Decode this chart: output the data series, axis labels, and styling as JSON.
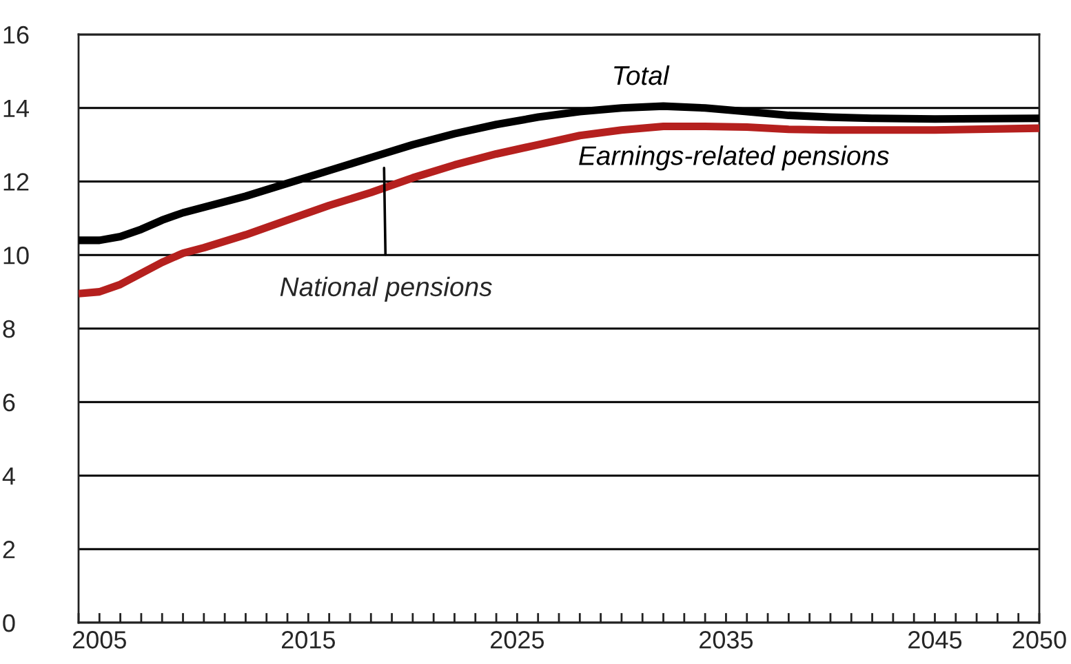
{
  "chart_data": {
    "type": "line",
    "x": [
      2004,
      2005,
      2006,
      2007,
      2008,
      2009,
      2010,
      2012,
      2014,
      2016,
      2018,
      2020,
      2022,
      2024,
      2026,
      2028,
      2030,
      2032,
      2034,
      2036,
      2038,
      2040,
      2042,
      2045,
      2050
    ],
    "series": [
      {
        "name": "Total",
        "color": "#000000",
        "values": [
          10.4,
          10.4,
          10.5,
          10.7,
          10.95,
          11.15,
          11.3,
          11.6,
          11.95,
          12.3,
          12.65,
          13.0,
          13.3,
          13.55,
          13.75,
          13.9,
          14.0,
          14.05,
          14.0,
          13.9,
          13.8,
          13.75,
          13.72,
          13.7,
          13.72
        ]
      },
      {
        "name": "Earnings-related pensions",
        "color": "#b5201e",
        "values": [
          8.95,
          9.0,
          9.2,
          9.5,
          9.8,
          10.05,
          10.2,
          10.55,
          10.95,
          11.35,
          11.7,
          12.1,
          12.45,
          12.75,
          13.0,
          13.25,
          13.4,
          13.5,
          13.5,
          13.48,
          13.42,
          13.4,
          13.4,
          13.4,
          13.45
        ]
      }
    ],
    "annotations": [
      "National pensions"
    ],
    "xlim": [
      2004,
      2050
    ],
    "xticks": [
      {
        "value": 2004,
        "label": null
      },
      2005,
      {
        "value": 2006,
        "label": null
      },
      {
        "value": 2007,
        "label": null
      },
      {
        "value": 2008,
        "label": null
      },
      {
        "value": 2009,
        "label": null
      },
      {
        "value": 2010,
        "label": null
      },
      {
        "value": 2011,
        "label": null
      },
      {
        "value": 2012,
        "label": null
      },
      {
        "value": 2013,
        "label": null
      },
      {
        "value": 2014,
        "label": null
      },
      2015,
      {
        "value": 2016,
        "label": null
      },
      {
        "value": 2017,
        "label": null
      },
      {
        "value": 2018,
        "label": null
      },
      {
        "value": 2019,
        "label": null
      },
      {
        "value": 2020,
        "label": null
      },
      {
        "value": 2021,
        "label": null
      },
      {
        "value": 2022,
        "label": null
      },
      {
        "value": 2023,
        "label": null
      },
      {
        "value": 2024,
        "label": null
      },
      2025,
      {
        "value": 2026,
        "label": null
      },
      {
        "value": 2027,
        "label": null
      },
      {
        "value": 2028,
        "label": null
      },
      {
        "value": 2029,
        "label": null
      },
      {
        "value": 2030,
        "label": null
      },
      {
        "value": 2031,
        "label": null
      },
      {
        "value": 2032,
        "label": null
      },
      {
        "value": 2033,
        "label": null
      },
      {
        "value": 2034,
        "label": null
      },
      2035,
      {
        "value": 2036,
        "label": null
      },
      {
        "value": 2037,
        "label": null
      },
      {
        "value": 2038,
        "label": null
      },
      {
        "value": 2039,
        "label": null
      },
      {
        "value": 2040,
        "label": null
      },
      {
        "value": 2041,
        "label": null
      },
      {
        "value": 2042,
        "label": null
      },
      {
        "value": 2043,
        "label": null
      },
      {
        "value": 2044,
        "label": null
      },
      2045,
      {
        "value": 2046,
        "label": null
      },
      {
        "value": 2047,
        "label": null
      },
      {
        "value": 2048,
        "label": null
      },
      {
        "value": 2049,
        "label": null
      },
      2050
    ],
    "ylim": [
      0,
      16
    ],
    "yticks": [
      0,
      2,
      4,
      6,
      8,
      10,
      12,
      14,
      16
    ],
    "grid": "y",
    "legend": false,
    "marker": "none",
    "line_style": "solid"
  }
}
